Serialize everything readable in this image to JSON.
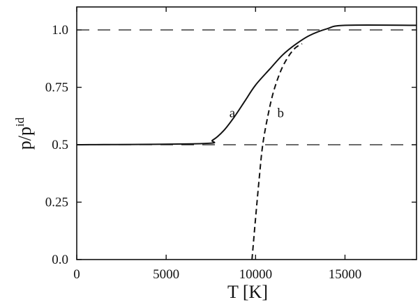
{
  "chart_data": {
    "type": "line",
    "title": "",
    "xlabel": "T [K]",
    "ylabel": "p/p",
    "ylabel_sup": "id",
    "xlim": [
      0,
      19000
    ],
    "ylim": [
      0,
      1.1
    ],
    "grid": false,
    "x_ticks": [
      0,
      5000,
      10000,
      15000
    ],
    "x_tick_labels": [
      "0",
      "5000",
      "10000",
      "15000"
    ],
    "y_ticks": [
      0,
      0.25,
      0.5,
      0.75,
      1.0
    ],
    "y_tick_labels": [
      "0.0",
      "0.25",
      "0.5",
      "0.75",
      "1.0"
    ],
    "series": [
      {
        "name": "a",
        "style": "solid",
        "x": [
          0,
          7000,
          7600,
          8200,
          8800,
          9400,
          10000,
          10800,
          11500,
          12200,
          13000,
          14000,
          15000,
          19000
        ],
        "y": [
          0.5,
          0.505,
          0.52,
          0.56,
          0.62,
          0.69,
          0.76,
          0.83,
          0.89,
          0.935,
          0.975,
          1.005,
          1.02,
          1.02
        ]
      },
      {
        "name": "b",
        "style": "dashed",
        "x": [
          9800,
          10000,
          10200,
          10400,
          10700,
          11000,
          11400,
          11800,
          12200,
          12600
        ],
        "y": [
          0.0,
          0.18,
          0.35,
          0.5,
          0.63,
          0.73,
          0.82,
          0.88,
          0.92,
          0.94
        ]
      }
    ],
    "reference_lines": [
      {
        "y": 1.0,
        "style": "dashed"
      },
      {
        "y": 0.5,
        "style": "dashed"
      }
    ],
    "annotations": [
      {
        "text": "a",
        "x": 8700,
        "y": 0.62
      },
      {
        "text": "b",
        "x": 11400,
        "y": 0.62
      }
    ],
    "colors": {
      "line": "#111111",
      "frame": "#111111",
      "background": "#ffffff"
    }
  }
}
